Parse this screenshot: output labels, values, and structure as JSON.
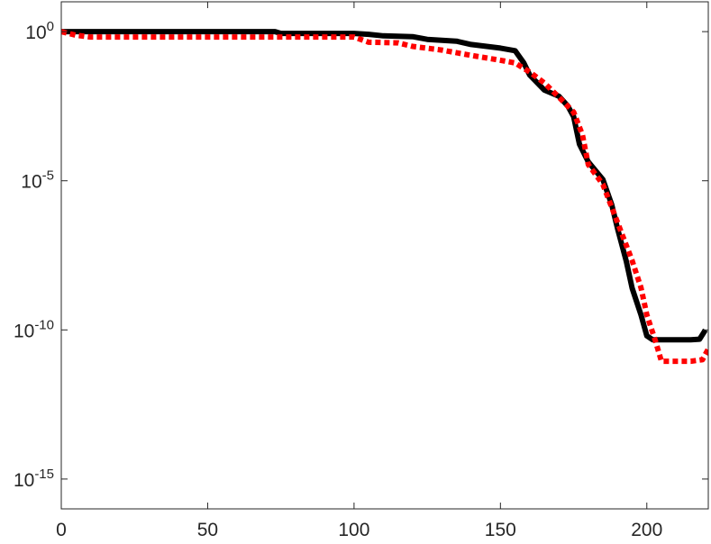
{
  "chart_data": {
    "type": "line",
    "log_y": true,
    "box": true,
    "xlim": [
      0,
      221
    ],
    "xticks": [
      0,
      50,
      100,
      150,
      200
    ],
    "ylim": [
      1e-16,
      10
    ],
    "yticks": [
      {
        "value": 1,
        "label": "10^0"
      },
      {
        "value": 1e-05,
        "label": "10^-5"
      },
      {
        "value": 1e-10,
        "label": "10^-10"
      },
      {
        "value": 1e-15,
        "label": "10^-15"
      }
    ],
    "series": [
      {
        "color": "#000000",
        "dash": "solid",
        "x": [
          0,
          73,
          75,
          100,
          105,
          110,
          120,
          125,
          135,
          140,
          150,
          155,
          158,
          160,
          165,
          170,
          173,
          175,
          177,
          180,
          185,
          188,
          190,
          193,
          195,
          198,
          200,
          202,
          215,
          218,
          220
        ],
        "values": [
          1,
          1,
          0.87,
          0.87,
          0.81,
          0.72,
          0.68,
          0.55,
          0.48,
          0.37,
          0.28,
          0.23,
          0.089,
          0.035,
          0.011,
          0.0068,
          0.0032,
          0.0014,
          0.00017,
          4.3e-05,
          1.1e-05,
          1.6e-06,
          2.5e-07,
          2e-08,
          2.5e-09,
          3.2e-10,
          6.3e-11,
          4.7e-11,
          4.7e-11,
          4.9e-11,
          1e-10
        ]
      },
      {
        "color": "#ff0000",
        "dash": "dotted",
        "x": [
          0,
          5,
          10,
          100,
          105,
          115,
          120,
          130,
          140,
          150,
          155,
          160,
          165,
          170,
          175,
          178,
          180,
          185,
          190,
          195,
          198,
          200,
          203,
          205,
          215,
          219,
          221
        ],
        "values": [
          1,
          0.76,
          0.66,
          0.66,
          0.44,
          0.42,
          0.32,
          0.24,
          0.16,
          0.11,
          0.089,
          0.044,
          0.019,
          0.0063,
          0.002,
          0.00035,
          3.5e-05,
          7.6e-06,
          4e-07,
          2.1e-08,
          2.6e-09,
          3.2e-10,
          4.1e-11,
          8.9e-12,
          8.9e-12,
          1e-11,
          2.3e-11
        ]
      }
    ]
  }
}
